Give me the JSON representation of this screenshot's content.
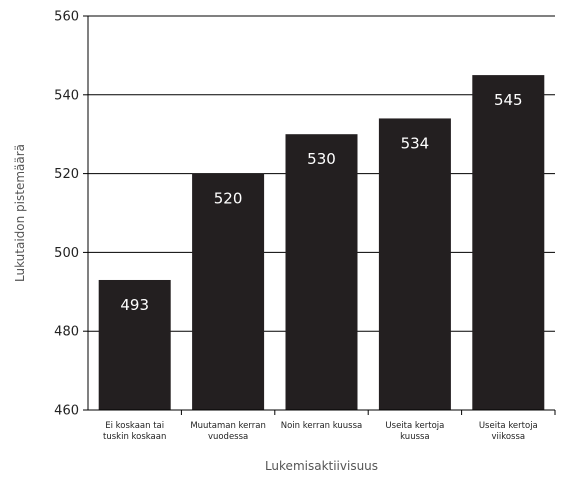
{
  "chart_data": {
    "type": "bar",
    "title": "",
    "xlabel": "Lukemisaktiivisuus",
    "ylabel": "Lukutaidon pistemäärä",
    "ylim": [
      460,
      560
    ],
    "yticks": [
      460,
      480,
      500,
      520,
      540,
      560
    ],
    "grid": true,
    "categories": [
      [
        "Ei koskaan tai",
        "tuskin koskaan"
      ],
      [
        "Muutaman kerran",
        "vuodessa"
      ],
      [
        "Noin kerran kuussa"
      ],
      [
        "Useita kertoja",
        "kuussa"
      ],
      [
        "Useita kertoja",
        "viikossa"
      ]
    ],
    "values": [
      493,
      520,
      530,
      534,
      545
    ],
    "bar_color": "#231f20",
    "label_color": "#ffffff"
  }
}
